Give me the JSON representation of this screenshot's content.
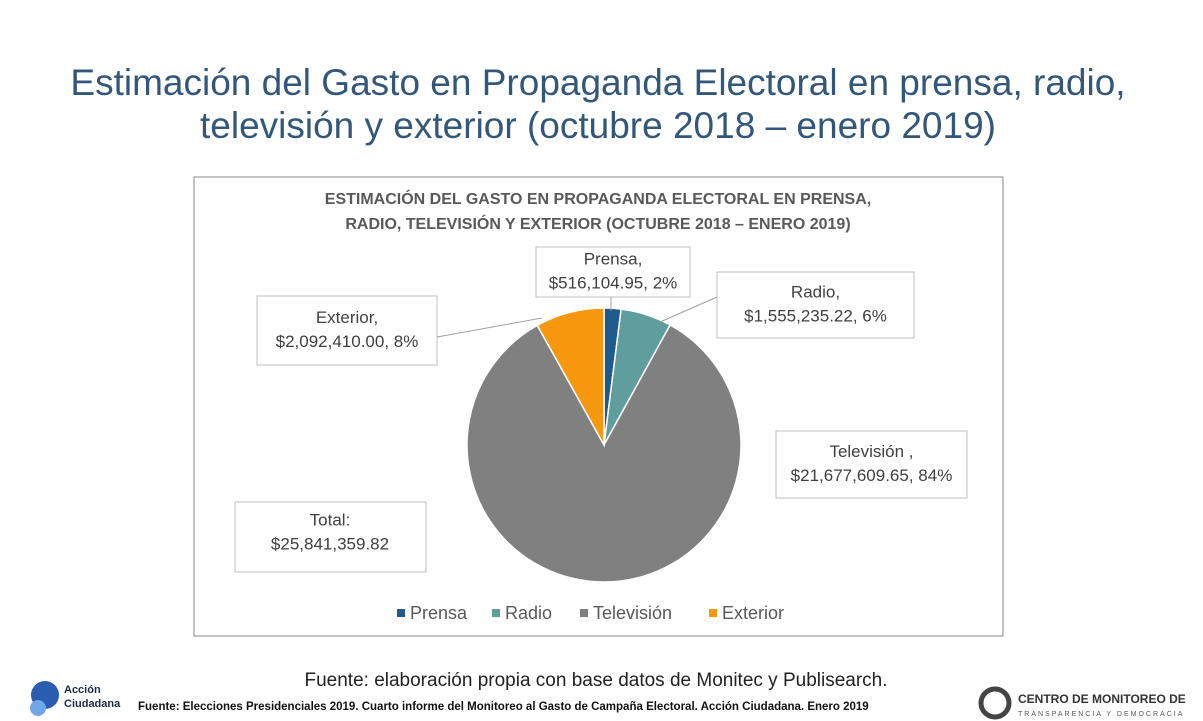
{
  "slide": {
    "title": [
      "Estimación del Gasto en Propaganda Electoral en prensa, radio,",
      "televisión y exterior (octubre 2018 – enero 2019)"
    ],
    "source": "Fuente: elaboración propia con base datos de Monitec y Publisearch.",
    "footnote": "Fuente: Elecciones Presidenciales 2019. Cuarto informe del Monitoreo al Gasto de Campaña Electoral. Acción Ciudadana. Enero 2019",
    "logo_left": [
      "Acción",
      "Ciudadana"
    ],
    "logo_right": [
      "CENTRO DE MONITOREO DE",
      "TRANSPARENCIA Y DEMOCRACIA"
    ]
  },
  "chart_data": {
    "type": "pie",
    "title": [
      "ESTIMACIÓN DEL GASTO EN PROPAGANDA ELECTORAL EN PRENSA,",
      "RADIO, TELEVISIÓN Y EXTERIOR (OCTUBRE 2018 – ENERO 2019)"
    ],
    "categories": [
      "Prensa",
      "Radio",
      "Televisión",
      "Exterior"
    ],
    "values": [
      516104.95,
      1555235.22,
      21677609.65,
      2092410.0
    ],
    "value_labels": [
      [
        "Prensa,",
        "$516,104.95, 2%"
      ],
      [
        "Radio,",
        "$1,555,235.22, 6%"
      ],
      [
        "Televisión ,",
        "$21,677,609.65, 84%"
      ],
      [
        "Exterior,",
        "$2,092,410.00, 8%"
      ]
    ],
    "colors": [
      "#1f5a8c",
      "#5f9e9c",
      "#808080",
      "#f5980e"
    ],
    "annotation": [
      "Total:",
      "$25,841,359.82"
    ],
    "legend": "bottom"
  }
}
